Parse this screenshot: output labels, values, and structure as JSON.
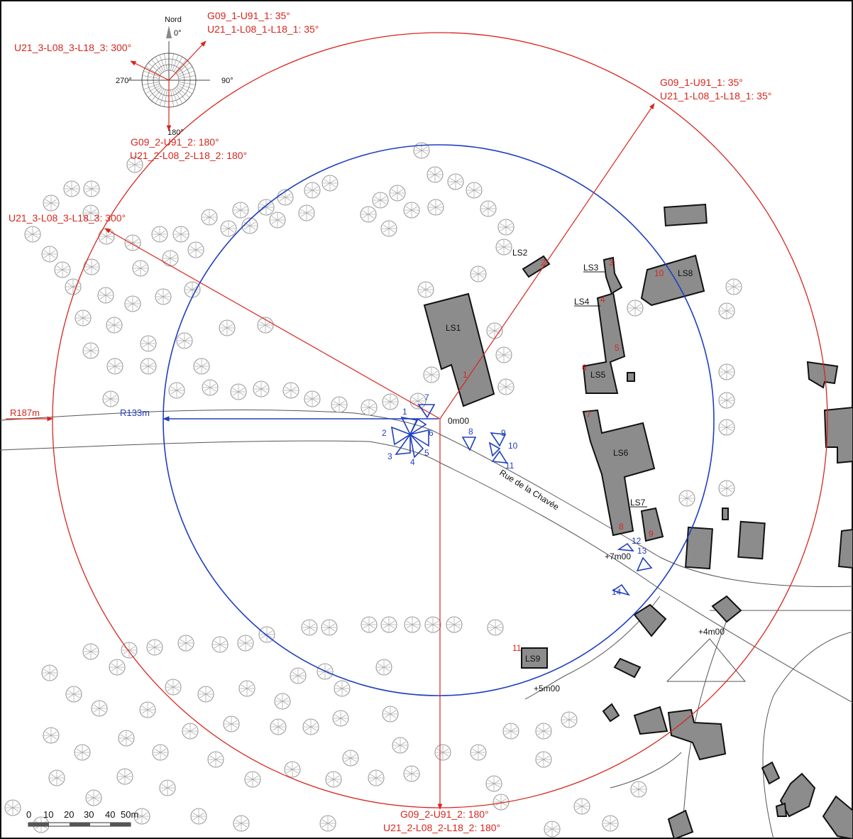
{
  "compass": {
    "north_label": "Nord",
    "deg_0": "0°",
    "deg_90": "90°",
    "deg_180": "180°",
    "deg_270": "270°"
  },
  "directions": {
    "dir35_a": "G09_1-U91_1: 35°",
    "dir35_b": "U21_1-L08_1-L18_1: 35°",
    "dir180_a": "G09_2-U91_2: 180°",
    "dir180_b": "U21_2-L08_2-L18_2: 180°",
    "dir300": "U21_3-L08_3-L18_3: 300°"
  },
  "radii": {
    "outer": "R187m",
    "inner": "R133m"
  },
  "elevations": {
    "e0": "0m00",
    "e7": "+7m00",
    "e4": "+4m00",
    "e5": "+5m00"
  },
  "street_name": "Rue de la Chavée",
  "buildings": [
    "LS1",
    "LS2",
    "LS3",
    "LS4",
    "LS5",
    "LS6",
    "LS7",
    "LS8",
    "LS9"
  ],
  "red_points": [
    "1",
    "2",
    "3",
    "4",
    "5",
    "6",
    "7",
    "8",
    "9",
    "10",
    "11"
  ],
  "blue_views": [
    "1",
    "2",
    "3",
    "4",
    "5",
    "6",
    "7",
    "8",
    "9",
    "10",
    "11",
    "12",
    "13",
    "14"
  ],
  "scale_bar": {
    "labels": [
      "0",
      "10",
      "20",
      "30",
      "40",
      "50m"
    ]
  },
  "colors": {
    "outer_circle": "#d7261e",
    "inner_circle": "#1f3fbf",
    "building_fill": "#8c8c8c",
    "tree": "#9a9a9a"
  }
}
